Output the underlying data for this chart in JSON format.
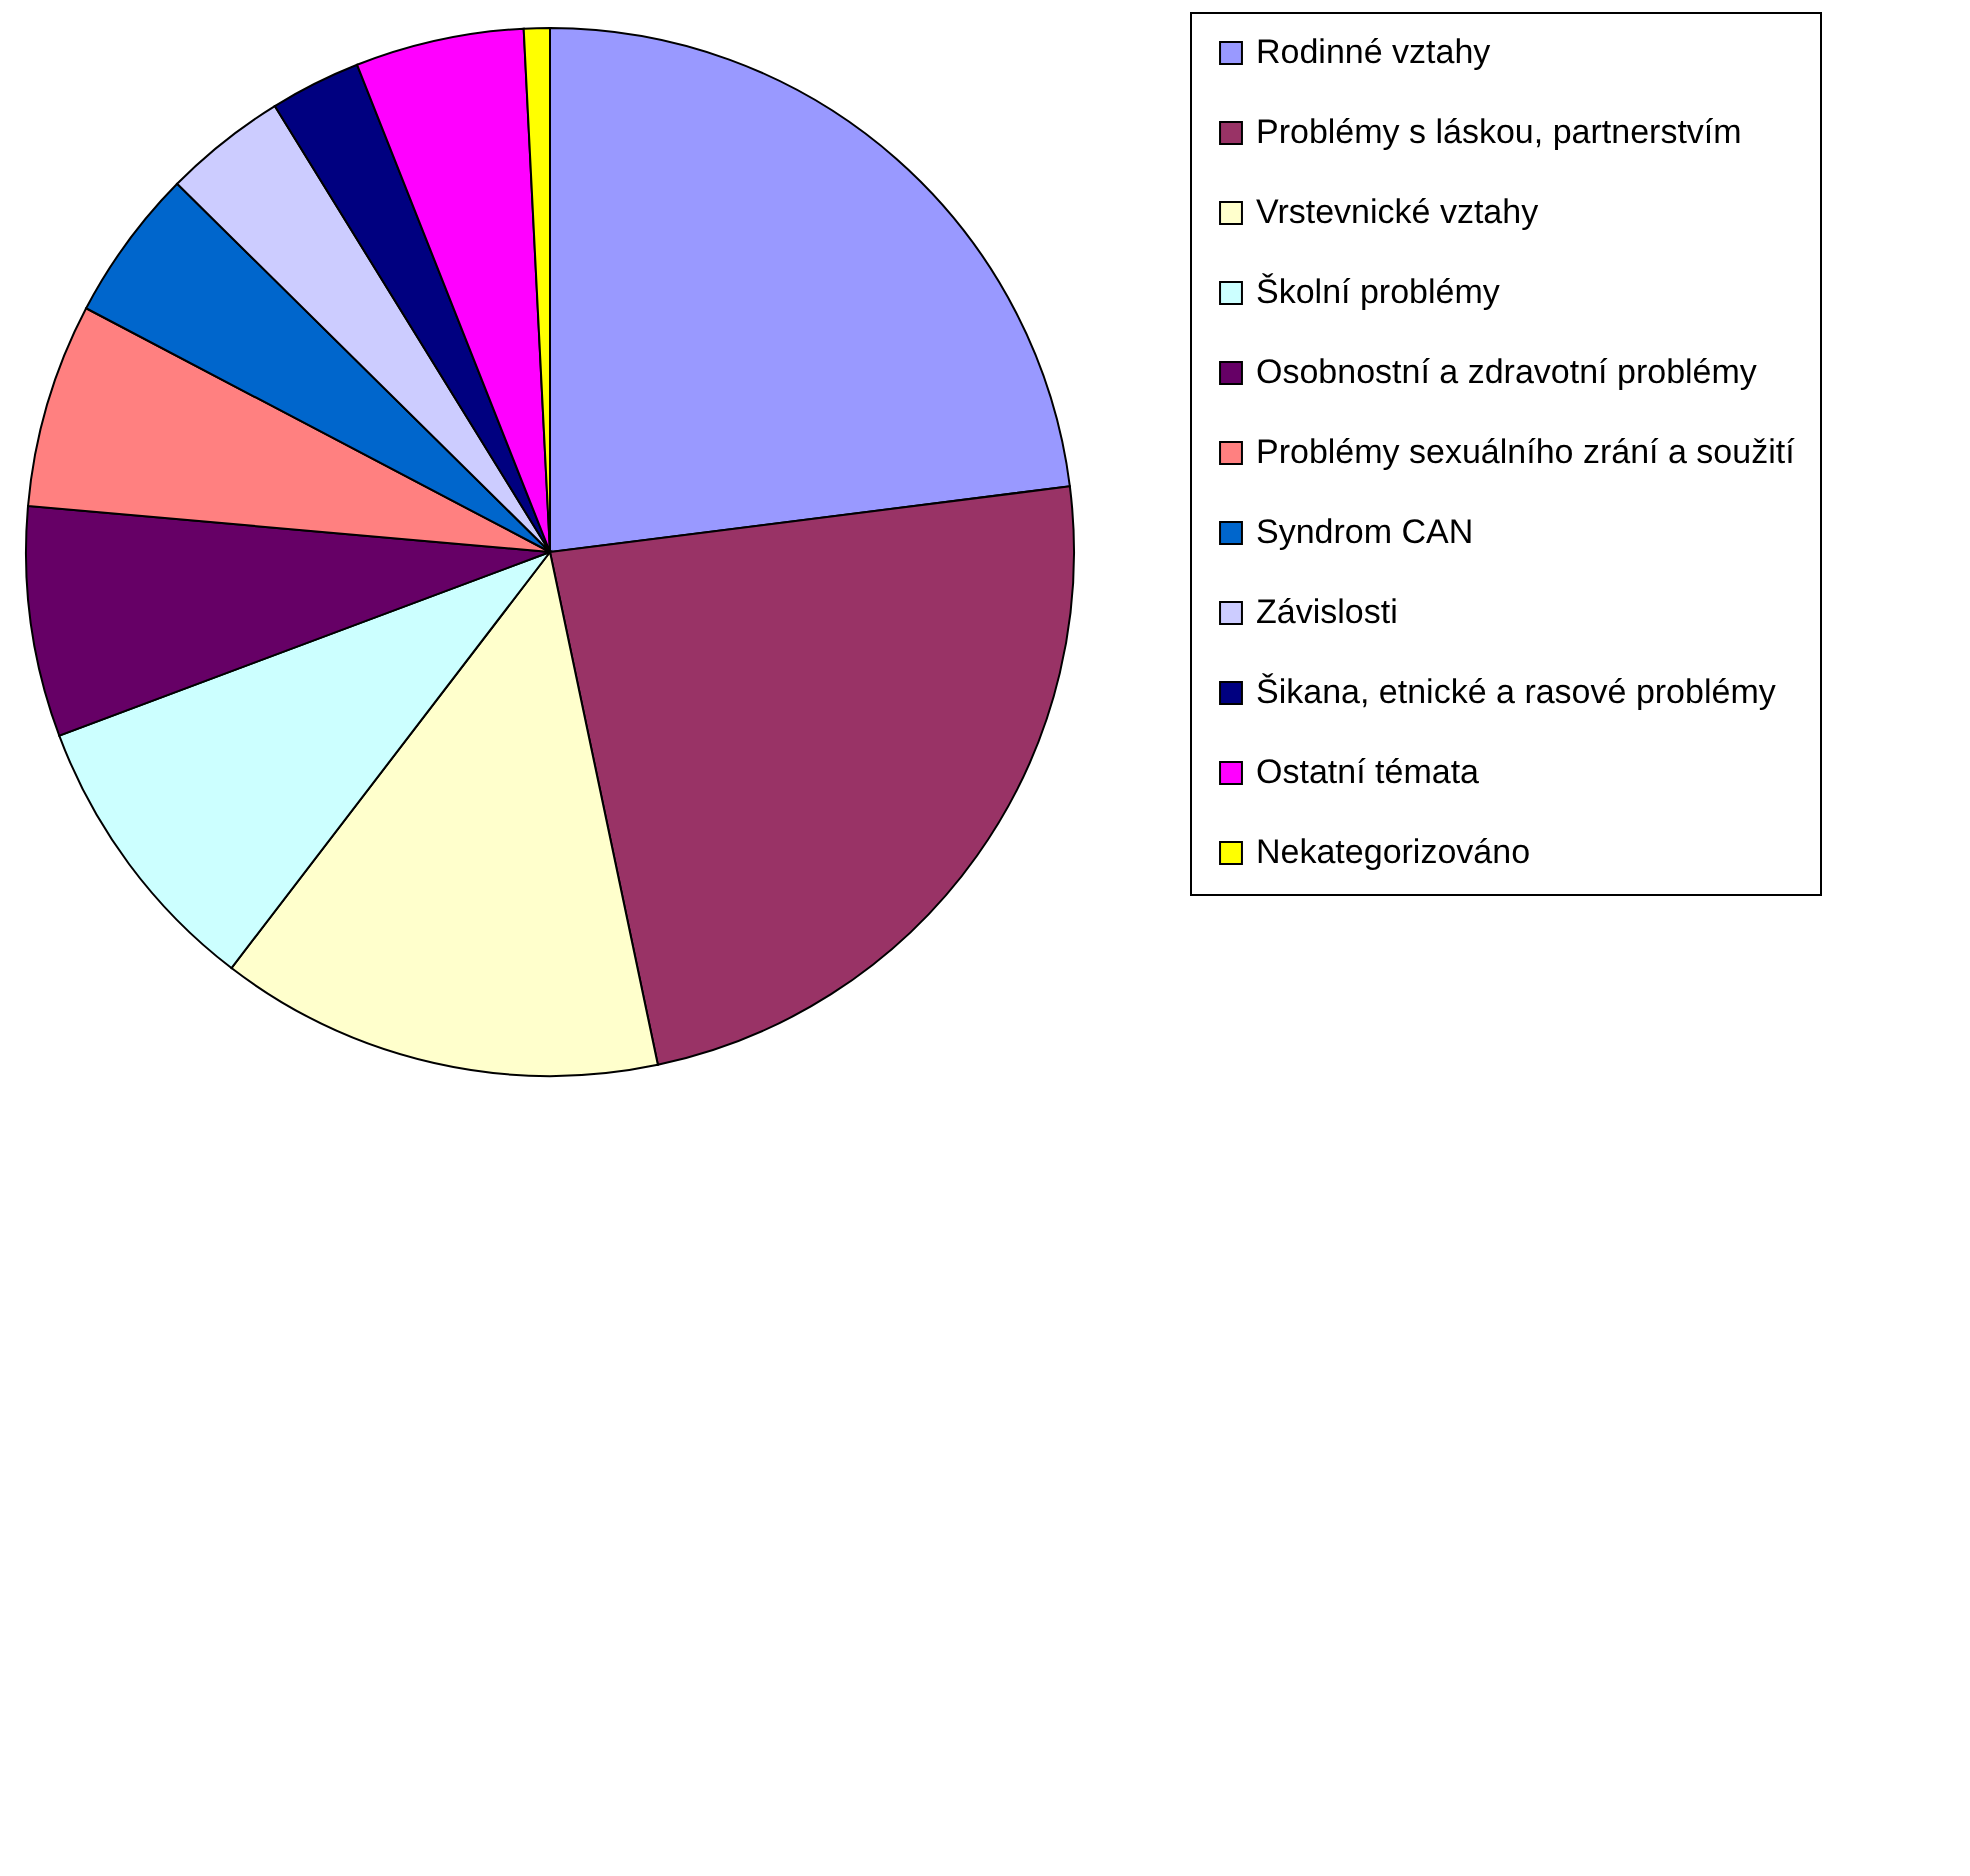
{
  "chart_data": {
    "type": "pie",
    "categories": [
      "Rodinné vztahy",
      "Problémy s láskou, partnerstvím",
      "Vrstevnické vztahy",
      "Školní problémy",
      "Osobnostní a zdravotní problémy",
      "Problémy sexuálního zrání a soužití",
      "Syndrom CAN",
      "Závislosti",
      "Šikana, etnické a rasové problémy",
      "Ostatní témata",
      "Nekategorizováno"
    ],
    "values": [
      23.0,
      23.7,
      13.7,
      8.9,
      7.1,
      6.3,
      4.7,
      3.8,
      2.8,
      5.2,
      0.8
    ],
    "colors": [
      "#9999ff",
      "#993366",
      "#ffffcc",
      "#ccffff",
      "#660066",
      "#ff8080",
      "#0066cc",
      "#ccccff",
      "#000080",
      "#ff00ff",
      "#ffff00"
    ],
    "legend": "right"
  }
}
